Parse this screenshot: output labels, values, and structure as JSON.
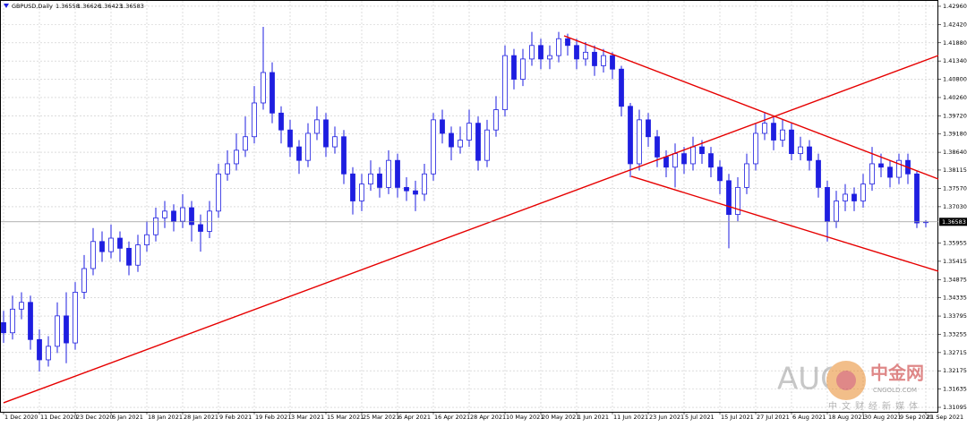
{
  "chart_data": {
    "type": "candlestick",
    "symbol": "GBPUSD,Daily",
    "color": "#1e1ee0",
    "categories": [
      "1 Dec 2020",
      null,
      null,
      null,
      "11 Dec 2020",
      null,
      null,
      null,
      "23 Dec 2020",
      null,
      null,
      null,
      "6 Jan 2021",
      null,
      null,
      null,
      "18 Jan 2021",
      null,
      null,
      null,
      "28 Jan 2021",
      null,
      null,
      null,
      "9 Feb 2021",
      null,
      null,
      null,
      "19 Feb 2021",
      null,
      null,
      null,
      "3 Mar 2021",
      null,
      null,
      null,
      "15 Mar 2021",
      null,
      null,
      null,
      "25 Mar 2021",
      null,
      null,
      null,
      "6 Apr 2021",
      null,
      null,
      null,
      "16 Apr 2021",
      null,
      null,
      null,
      "28 Apr 2021",
      null,
      null,
      null,
      "10 May 2021",
      null,
      null,
      null,
      "20 May 2021",
      null,
      null,
      null,
      "1 Jun 2021",
      null,
      null,
      null,
      "11 Jun 2021",
      null,
      null,
      null,
      "23 Jun 2021",
      null,
      null,
      null,
      "5 Jul 2021",
      null,
      null,
      null,
      "15 Jul 2021",
      null,
      null,
      null,
      "27 Jul 2021",
      null,
      null,
      null,
      "6 Aug 2021",
      null,
      null,
      null,
      "18 Aug 2021",
      null,
      null,
      null,
      "30 Aug 2021",
      null,
      null,
      null,
      "9 Sep 2021",
      null,
      null,
      "21 Sep 2021"
    ],
    "open": [
      1.336,
      1.333,
      1.34,
      1.342,
      1.331,
      1.325,
      1.329,
      1.338,
      1.33,
      1.345,
      1.352,
      1.36,
      1.357,
      1.361,
      1.358,
      1.353,
      1.359,
      1.362,
      1.367,
      1.369,
      1.366,
      1.37,
      1.365,
      1.363,
      1.369,
      1.38,
      1.383,
      1.387,
      1.391,
      1.401,
      1.41,
      1.398,
      1.393,
      1.388,
      1.384,
      1.392,
      1.396,
      1.388,
      1.391,
      1.38,
      1.372,
      1.377,
      1.38,
      1.376,
      1.384,
      1.376,
      1.375,
      1.374,
      1.38,
      1.396,
      1.392,
      1.388,
      1.39,
      1.395,
      1.384,
      1.393,
      1.399,
      1.415,
      1.408,
      1.414,
      1.418,
      1.414,
      1.415,
      1.42,
      1.418,
      1.414,
      1.416,
      1.412,
      1.415,
      1.411,
      1.4,
      1.383,
      1.396,
      1.391,
      1.385,
      1.382,
      1.386,
      1.383,
      1.388,
      1.386,
      1.382,
      1.378,
      1.368,
      1.376,
      1.383,
      1.392,
      1.395,
      1.39,
      1.393,
      1.386,
      1.388,
      1.384,
      1.376,
      1.366,
      1.372,
      1.374,
      1.372,
      1.377,
      1.383,
      1.382,
      1.379,
      1.384,
      1.38,
      1.36558
    ],
    "high": [
      1.3395,
      1.344,
      1.345,
      1.344,
      1.334,
      1.332,
      1.342,
      1.345,
      1.348,
      1.356,
      1.364,
      1.363,
      1.365,
      1.363,
      1.36,
      1.362,
      1.366,
      1.37,
      1.372,
      1.371,
      1.374,
      1.372,
      1.368,
      1.372,
      1.383,
      1.387,
      1.392,
      1.397,
      1.406,
      1.4235,
      1.413,
      1.4,
      1.396,
      1.39,
      1.395,
      1.4,
      1.398,
      1.394,
      1.393,
      1.382,
      1.38,
      1.384,
      1.382,
      1.387,
      1.386,
      1.379,
      1.378,
      1.383,
      1.398,
      1.399,
      1.394,
      1.394,
      1.399,
      1.397,
      1.396,
      1.403,
      1.418,
      1.417,
      1.417,
      1.422,
      1.42,
      1.418,
      1.422,
      1.4215,
      1.42,
      1.419,
      1.418,
      1.417,
      1.416,
      1.412,
      1.401,
      1.399,
      1.398,
      1.393,
      1.387,
      1.389,
      1.388,
      1.391,
      1.39,
      1.388,
      1.384,
      1.38,
      1.379,
      1.386,
      1.395,
      1.398,
      1.397,
      1.396,
      1.395,
      1.391,
      1.39,
      1.386,
      1.378,
      1.375,
      1.377,
      1.376,
      1.38,
      1.388,
      1.386,
      1.384,
      1.386,
      1.386,
      1.381,
      1.36626
    ],
    "low": [
      1.33,
      1.331,
      1.337,
      1.328,
      1.3215,
      1.323,
      1.327,
      1.324,
      1.328,
      1.343,
      1.35,
      1.354,
      1.355,
      1.354,
      1.35,
      1.351,
      1.357,
      1.36,
      1.364,
      1.363,
      1.364,
      1.36,
      1.357,
      1.361,
      1.367,
      1.378,
      1.381,
      1.385,
      1.389,
      1.399,
      1.395,
      1.389,
      1.385,
      1.38,
      1.382,
      1.39,
      1.385,
      1.386,
      1.377,
      1.368,
      1.369,
      1.375,
      1.373,
      1.374,
      1.373,
      1.372,
      1.369,
      1.372,
      1.378,
      1.389,
      1.384,
      1.386,
      1.388,
      1.381,
      1.382,
      1.391,
      1.397,
      1.405,
      1.406,
      1.412,
      1.411,
      1.411,
      1.413,
      1.415,
      1.411,
      1.412,
      1.409,
      1.41,
      1.408,
      1.397,
      1.379,
      1.381,
      1.388,
      1.382,
      1.379,
      1.376,
      1.38,
      1.381,
      1.383,
      1.379,
      1.374,
      1.358,
      1.366,
      1.374,
      1.381,
      1.39,
      1.387,
      1.388,
      1.384,
      1.384,
      1.381,
      1.373,
      1.36,
      1.364,
      1.369,
      1.369,
      1.37,
      1.375,
      1.379,
      1.376,
      1.377,
      1.377,
      1.364,
      1.36423
    ],
    "close": [
      1.333,
      1.34,
      1.342,
      1.331,
      1.325,
      1.329,
      1.338,
      1.33,
      1.345,
      1.352,
      1.36,
      1.357,
      1.361,
      1.358,
      1.353,
      1.359,
      1.362,
      1.367,
      1.369,
      1.366,
      1.37,
      1.365,
      1.363,
      1.369,
      1.38,
      1.383,
      1.387,
      1.391,
      1.401,
      1.41,
      1.398,
      1.393,
      1.388,
      1.384,
      1.392,
      1.396,
      1.388,
      1.391,
      1.38,
      1.372,
      1.377,
      1.38,
      1.376,
      1.384,
      1.376,
      1.375,
      1.374,
      1.38,
      1.396,
      1.392,
      1.388,
      1.39,
      1.395,
      1.384,
      1.393,
      1.399,
      1.415,
      1.408,
      1.414,
      1.418,
      1.414,
      1.415,
      1.42,
      1.418,
      1.414,
      1.416,
      1.412,
      1.415,
      1.411,
      1.4,
      1.383,
      1.396,
      1.391,
      1.385,
      1.382,
      1.386,
      1.383,
      1.388,
      1.386,
      1.382,
      1.378,
      1.368,
      1.376,
      1.383,
      1.392,
      1.395,
      1.39,
      1.393,
      1.386,
      1.388,
      1.384,
      1.376,
      1.366,
      1.372,
      1.374,
      1.372,
      1.377,
      1.383,
      1.382,
      1.379,
      1.384,
      1.38,
      1.3655,
      1.36583
    ],
    "ylim": [
      1.30963,
      1.43145
    ],
    "yticks": [
      {
        "value": 1.4296,
        "label": "1.42960"
      },
      {
        "value": 1.4242,
        "label": "1.42420"
      },
      {
        "value": 1.4188,
        "label": "1.41880"
      },
      {
        "value": 1.4134,
        "label": "1.41340"
      },
      {
        "value": 1.408,
        "label": "1.40800"
      },
      {
        "value": 1.4026,
        "label": "1.40260"
      },
      {
        "value": 1.3972,
        "label": "1.39720"
      },
      {
        "value": 1.3918,
        "label": "1.39180"
      },
      {
        "value": 1.3864,
        "label": "1.38640"
      },
      1.38115,
      {
        "value": 1.3757,
        "label": "1.37570"
      },
      {
        "value": 1.3703,
        "label": "1.37030"
      },
      1.35955,
      1.35415,
      1.34875,
      1.34335,
      1.33795,
      1.33255,
      1.32715,
      1.32175,
      1.31635,
      1.31095
    ],
    "grid": true,
    "trendlines": [
      {
        "color": "#e60000",
        "x": [
          0,
          104.4
        ],
        "y": [
          1.31229,
          1.41503
        ]
      },
      {
        "color": "#e60000",
        "x": [
          62.6,
          104.4
        ],
        "y": [
          1.42086,
          1.37849
        ]
      },
      {
        "color": "#e60000",
        "x": [
          70.1,
          104.4
        ],
        "y": [
          1.37929,
          1.35122
        ]
      }
    ]
  },
  "watermark": {
    "text": "AUG",
    "brand": "中金网",
    "site": "CNGOLD.COM",
    "tagline": "中文财经新媒体"
  }
}
